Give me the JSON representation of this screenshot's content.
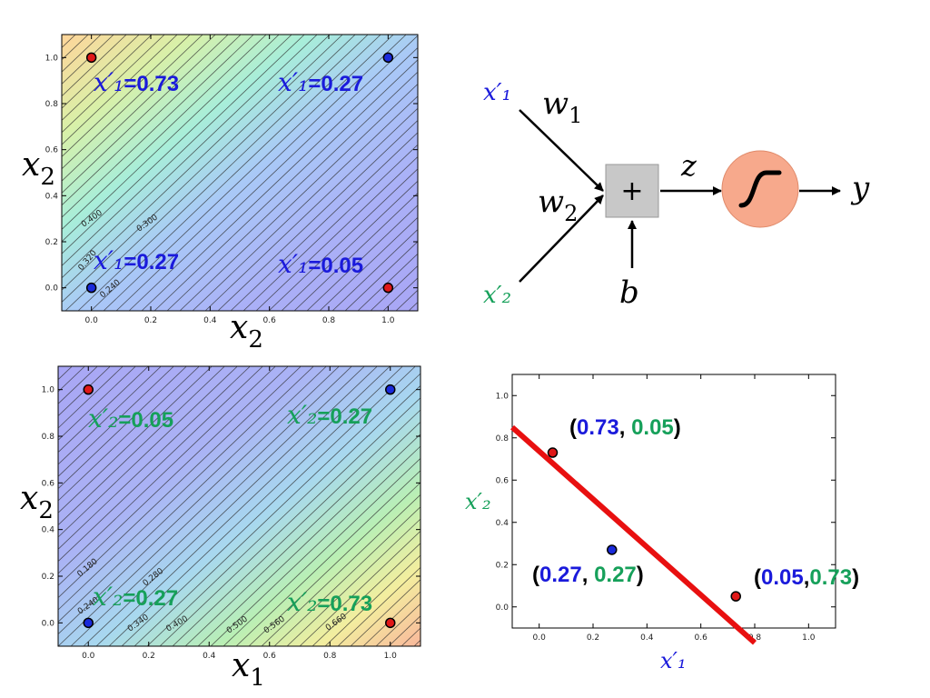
{
  "colors": {
    "blue": "#1a1adb",
    "green": "#16a05a",
    "red_point": "#e01818",
    "blue_point": "#1a2adb",
    "red_line": "#e81010",
    "sigmoid_fill": "#f7a98c"
  },
  "chart_data": [
    {
      "type": "contour",
      "id": "top-left",
      "xlabel": "x_2",
      "ylabel": "x_2",
      "xlim": [
        -0.1,
        1.1
      ],
      "ylim": [
        -0.1,
        1.1
      ],
      "xticks": [
        "0.0",
        "0.2",
        "0.4",
        "0.6",
        "0.8",
        "1.0"
      ],
      "yticks": [
        "0.0",
        "0.2",
        "0.4",
        "0.6",
        "0.8",
        "1.0"
      ],
      "contour_labels": [
        "0.400",
        "0.300",
        "0.320",
        "0.240"
      ],
      "points": [
        {
          "x": 0,
          "y": 1,
          "color": "red"
        },
        {
          "x": 1,
          "y": 1,
          "color": "blue"
        },
        {
          "x": 0,
          "y": 0,
          "color": "blue"
        },
        {
          "x": 1,
          "y": 0,
          "color": "red"
        }
      ],
      "annotations": [
        {
          "var": "x′₁",
          "value": "=0.73",
          "color": "blue"
        },
        {
          "var": "x′₁",
          "value": "=0.27",
          "color": "blue"
        },
        {
          "var": "x′₁",
          "value": "=0.27",
          "color": "blue"
        },
        {
          "var": "x′₁",
          "value": "=0.05",
          "color": "blue"
        }
      ]
    },
    {
      "type": "contour",
      "id": "bottom-left",
      "xlabel": "x_1",
      "ylabel": "x_2",
      "xlim": [
        -0.1,
        1.1
      ],
      "ylim": [
        -0.1,
        1.1
      ],
      "xticks": [
        "0.0",
        "0.2",
        "0.4",
        "0.6",
        "0.8",
        "1.0"
      ],
      "yticks": [
        "0.0",
        "0.2",
        "0.4",
        "0.6",
        "0.8",
        "1.0"
      ],
      "contour_labels": [
        "0.180",
        "0.280",
        "0.240",
        "0.340",
        "0.400",
        "0.500",
        "0.560",
        "0.660"
      ],
      "points": [
        {
          "x": 0,
          "y": 1,
          "color": "red"
        },
        {
          "x": 1,
          "y": 1,
          "color": "blue"
        },
        {
          "x": 0,
          "y": 0,
          "color": "blue"
        },
        {
          "x": 1,
          "y": 0,
          "color": "red"
        }
      ],
      "annotations": [
        {
          "var": "x′₂",
          "value": "=0.05",
          "color": "green"
        },
        {
          "var": "x′₂",
          "value": "=0.27",
          "color": "green"
        },
        {
          "var": "x′₂",
          "value": "=0.27",
          "color": "green"
        },
        {
          "var": "x′₂",
          "value": "=0.73",
          "color": "green"
        }
      ]
    },
    {
      "type": "scatter",
      "id": "bottom-right",
      "xlabel": "x′₁",
      "ylabel": "x′₂",
      "xlim": [
        -0.1,
        1.1
      ],
      "ylim": [
        -0.1,
        1.1
      ],
      "xticks": [
        "0.0",
        "0.2",
        "0.4",
        "0.6",
        "0.8",
        "1.0"
      ],
      "yticks": [
        "0.0",
        "0.2",
        "0.4",
        "0.6",
        "0.8",
        "1.0"
      ],
      "points": [
        {
          "x": 0.05,
          "y": 0.73,
          "color": "red"
        },
        {
          "x": 0.27,
          "y": 0.27,
          "color": "blue"
        },
        {
          "x": 0.73,
          "y": 0.05,
          "color": "red"
        }
      ],
      "point_labels": [
        {
          "a": "0.73",
          "sep": ", ",
          "b": "0.05"
        },
        {
          "a": "0.27",
          "sep": ", ",
          "b": "0.27"
        },
        {
          "a": "0.05",
          "sep": ",",
          "b": "0.73"
        }
      ],
      "decision_line": {
        "x": [
          -0.1,
          0.8
        ],
        "y": [
          0.85,
          -0.17
        ]
      }
    }
  ],
  "diagram": {
    "input1": "x′₁",
    "input2": "x′₂",
    "weight1": "w",
    "weight1_sub": "1",
    "weight2": "w",
    "weight2_sub": "2",
    "sum_symbol": "+",
    "bias": "b",
    "z": "z",
    "output": "y"
  }
}
